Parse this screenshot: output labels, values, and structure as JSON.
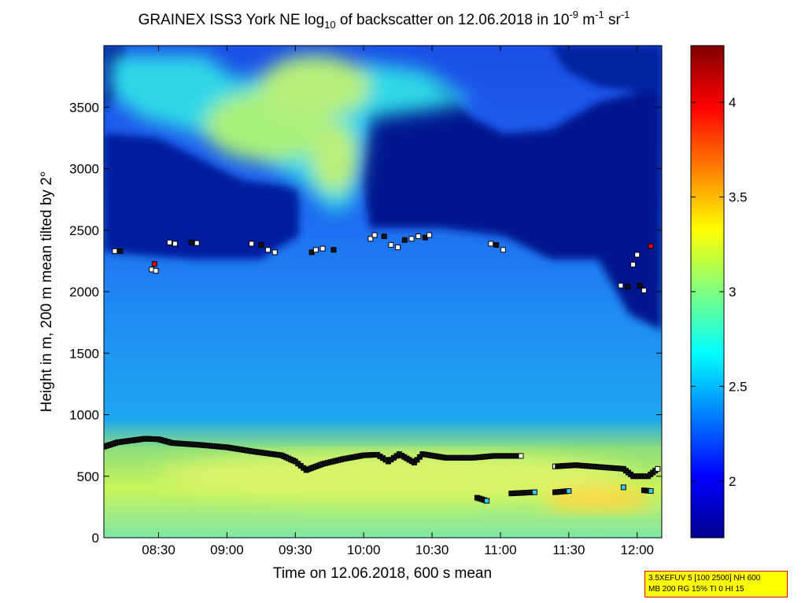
{
  "chart_data": {
    "type": "heatmap",
    "title": {
      "pre": "GRAINEX ISS3 York NE log",
      "sub": "10",
      "mid": " of backscatter on 12.06.2018 in 10",
      "sup1": "-9",
      "unit1": " m",
      "sup2": "-1",
      "unit2": " sr",
      "sup3": "-1"
    },
    "xlabel": "Time on 12.06.2018, 600 s mean",
    "ylabel": "Height in m, 200 m mean tilted by 2°",
    "x_range_hours": [
      8.1,
      12.18
    ],
    "ylim": [
      0,
      4000
    ],
    "x_ticks": [
      {
        "h": 8.5,
        "label": "08:30"
      },
      {
        "h": 9.0,
        "label": "09:00"
      },
      {
        "h": 9.5,
        "label": "09:30"
      },
      {
        "h": 10.0,
        "label": "10:00"
      },
      {
        "h": 10.5,
        "label": "10:30"
      },
      {
        "h": 11.0,
        "label": "11:00"
      },
      {
        "h": 11.5,
        "label": "11:30"
      },
      {
        "h": 12.0,
        "label": "12:00"
      }
    ],
    "y_ticks": [
      {
        "v": 0,
        "label": "0"
      },
      {
        "v": 500,
        "label": "500"
      },
      {
        "v": 1000,
        "label": "1000"
      },
      {
        "v": 1500,
        "label": "1500"
      },
      {
        "v": 2000,
        "label": "2000"
      },
      {
        "v": 2500,
        "label": "2500"
      },
      {
        "v": 3000,
        "label": "3000"
      },
      {
        "v": 3500,
        "label": "3500"
      }
    ],
    "colorbar": {
      "range": [
        1.7,
        4.3
      ],
      "ticks": [
        {
          "v": 2,
          "label": "2"
        },
        {
          "v": 2.5,
          "label": "2.5"
        },
        {
          "v": 3,
          "label": "3"
        },
        {
          "v": 3.5,
          "label": "3.5"
        },
        {
          "v": 4,
          "label": "4"
        }
      ]
    },
    "boundary_layer_top": [
      [
        8.1,
        740
      ],
      [
        8.2,
        775
      ],
      [
        8.3,
        790
      ],
      [
        8.4,
        805
      ],
      [
        8.5,
        800
      ],
      [
        8.6,
        770
      ],
      [
        8.8,
        755
      ],
      [
        9.0,
        735
      ],
      [
        9.2,
        700
      ],
      [
        9.4,
        670
      ],
      [
        9.5,
        620
      ],
      [
        9.58,
        550
      ],
      [
        9.7,
        600
      ],
      [
        9.85,
        640
      ],
      [
        10.0,
        670
      ],
      [
        10.1,
        675
      ],
      [
        10.18,
        620
      ],
      [
        10.26,
        680
      ],
      [
        10.37,
        610
      ],
      [
        10.43,
        680
      ],
      [
        10.6,
        650
      ],
      [
        10.8,
        650
      ],
      [
        10.95,
        665
      ],
      [
        11.15,
        665
      ]
    ],
    "boundary_layer_late": [
      [
        11.4,
        580
      ],
      [
        11.55,
        590
      ],
      [
        11.9,
        560
      ],
      [
        11.97,
        500
      ],
      [
        12.08,
        500
      ],
      [
        12.15,
        560
      ]
    ],
    "lower_layers": [
      [
        [
          10.83,
          325
        ],
        [
          10.9,
          300
        ]
      ],
      [
        [
          11.08,
          360
        ],
        [
          11.25,
          370
        ]
      ],
      [
        [
          11.4,
          370
        ],
        [
          11.5,
          380
        ]
      ],
      [
        [
          11.9,
          410
        ]
      ],
      [
        [
          12.05,
          385
        ],
        [
          12.1,
          380
        ]
      ]
    ],
    "cloud_base_points": [
      [
        8.18,
        2330
      ],
      [
        8.22,
        2330
      ],
      [
        8.45,
        2180
      ],
      [
        8.48,
        2170
      ],
      [
        8.47,
        2225
      ],
      [
        8.58,
        2400
      ],
      [
        8.62,
        2390
      ],
      [
        8.74,
        2400
      ],
      [
        8.78,
        2395
      ],
      [
        9.18,
        2390
      ],
      [
        9.25,
        2380
      ],
      [
        9.3,
        2340
      ],
      [
        9.35,
        2320
      ],
      [
        9.62,
        2320
      ],
      [
        9.65,
        2340
      ],
      [
        9.7,
        2350
      ],
      [
        9.78,
        2340
      ],
      [
        10.05,
        2430
      ],
      [
        10.08,
        2460
      ],
      [
        10.15,
        2450
      ],
      [
        10.2,
        2380
      ],
      [
        10.25,
        2360
      ],
      [
        10.3,
        2420
      ],
      [
        10.35,
        2430
      ],
      [
        10.4,
        2450
      ],
      [
        10.45,
        2440
      ],
      [
        10.48,
        2460
      ],
      [
        10.93,
        2390
      ],
      [
        10.97,
        2380
      ],
      [
        11.02,
        2340
      ],
      [
        11.88,
        2050
      ],
      [
        11.93,
        2040
      ],
      [
        11.97,
        2220
      ],
      [
        12.0,
        2300
      ],
      [
        12.02,
        2050
      ],
      [
        12.05,
        2010
      ],
      [
        12.1,
        2370
      ]
    ]
  },
  "info_box": {
    "line1": "3.5XEFUV 5 [100 2500] NH 600",
    "line2": "MB 200 RG 15% TI 0 HI 15"
  }
}
